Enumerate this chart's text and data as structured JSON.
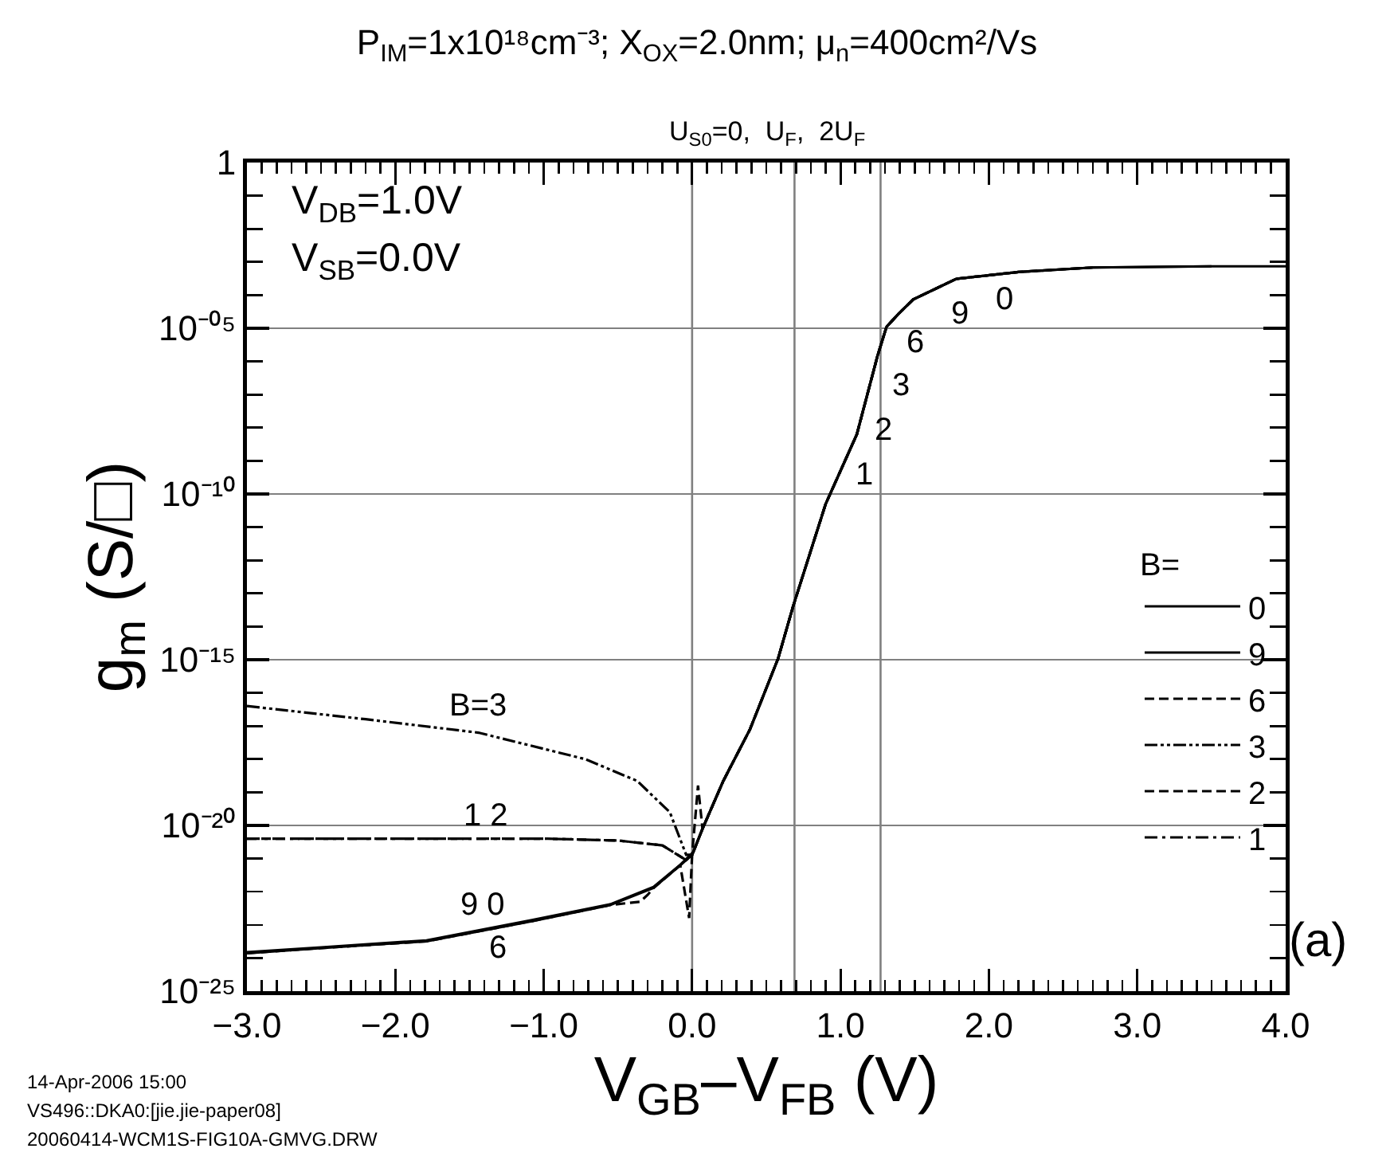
{
  "chart_data": {
    "type": "line",
    "title": "P$_{IM}$=1x10¹⁸cm⁻³; X$_{OX}$=2.0nm; μ$_{n}$=400cm²/Vs",
    "xlabel": "V$_{GB}$–V$_{FB}$ (V)",
    "ylabel": "g$_{m}$ (S/□)",
    "legend_title": "B=",
    "log": "y",
    "grid": "y",
    "legend": "right",
    "xlim": [
      -3,
      4
    ],
    "ylim": [
      1e-25,
      1
    ],
    "xticks": [
      {
        "value": -3,
        "label": "−3.0"
      },
      {
        "value": -2,
        "label": "−2.0"
      },
      {
        "value": -1,
        "label": "−1.0"
      },
      {
        "value": 0,
        "label": "0.0"
      },
      {
        "value": 1,
        "label": "1.0"
      },
      {
        "value": 2,
        "label": "2.0"
      },
      {
        "value": 3,
        "label": "3.0"
      },
      {
        "value": 4,
        "label": "4.0"
      }
    ],
    "yticks": [
      {
        "value": 1e-25,
        "label": "10⁻²⁵"
      },
      {
        "value": 1e-20,
        "label": "10⁻²⁰"
      },
      {
        "value": 1e-15,
        "label": "10⁻¹⁵"
      },
      {
        "value": 1e-10,
        "label": "10⁻¹⁰"
      },
      {
        "value": 1e-05,
        "label": "10⁻⁰⁵"
      },
      1
    ],
    "ref_lines": [
      {
        "axis": "x",
        "value": 0,
        "color": "#808080"
      },
      {
        "axis": "x",
        "value": 0.69,
        "color": "#808080"
      },
      {
        "axis": "x",
        "value": 1.27,
        "color": "#808080"
      }
    ],
    "series": [
      {
        "name": "0",
        "color": "#000000",
        "line_style": "solid",
        "x": [
          -3,
          -2.5,
          -1.79,
          -1.08,
          -0.55,
          -0.26,
          -0.08,
          0,
          0.07,
          0.21,
          0.39,
          0.58,
          0.68,
          0.9,
          1.11,
          1.25,
          1.31,
          1.39,
          1.49,
          1.78,
          2.2,
          2.7,
          3.5,
          4
        ],
        "values": [
          1.4e-24,
          2e-24,
          3.2e-24,
          1.3e-23,
          4e-23,
          1.3e-22,
          6.3e-22,
          1.3e-21,
          7.9e-21,
          2.2e-19,
          7.9e-18,
          1.1e-15,
          4e-14,
          5e-11,
          6.3e-09,
          1.5e-06,
          1.1e-05,
          2.7e-05,
          7.4e-05,
          0.00031,
          0.0005,
          0.00068,
          0.00074,
          0.00074
        ]
      },
      {
        "name": "9",
        "color": "#000000",
        "line_style": "solid",
        "x": [
          -3,
          -2.5,
          -1.79,
          -1.08,
          -0.55,
          -0.26,
          -0.08,
          0.01,
          0.07,
          0.21,
          0.39,
          0.58,
          0.68,
          0.9,
          1.11,
          1.25,
          1.31,
          1.39,
          1.49,
          1.78,
          2.2,
          2.7,
          3.5
        ],
        "values": [
          1.5e-24,
          2.1e-24,
          3.4e-24,
          1.4e-23,
          4.2e-23,
          1.4e-22,
          6.5e-22,
          1.6e-21,
          7.9e-21,
          2.2e-19,
          7.9e-18,
          1.1e-15,
          4e-14,
          5e-11,
          6.3e-09,
          1.5e-06,
          1.1e-05,
          2.7e-05,
          7.4e-05,
          0.00031,
          0.0005,
          0.00068,
          0.00074
        ]
      },
      {
        "name": "6",
        "color": "#000000",
        "line_style": "dashed",
        "x": [
          -3,
          -2.5,
          -1.79,
          -1.08,
          -0.55,
          -0.35,
          -0.3,
          -0.26,
          -0.08,
          -0.02,
          0,
          0.07,
          0.21,
          0.39,
          0.58,
          0.68,
          0.9,
          1.11,
          1.25,
          1.31,
          1.39,
          1.49,
          1.78,
          2.2,
          2.7
        ],
        "values": [
          1.4e-24,
          2e-24,
          3.2e-24,
          1.3e-23,
          4e-23,
          5e-23,
          8e-23,
          1.3e-22,
          6.3e-22,
          1.6e-23,
          1.3e-21,
          7.9e-21,
          2.2e-19,
          7.9e-18,
          1.1e-15,
          4e-14,
          5e-11,
          6.3e-09,
          1.5e-06,
          1.1e-05,
          2.7e-05,
          7.4e-05,
          0.00031,
          0.0005,
          0.00068
        ]
      },
      {
        "name": "3",
        "color": "#000000",
        "line_style": "dashdotdot",
        "x": [
          -3,
          -2.2,
          -1.44,
          -0.72,
          -0.37,
          -0.15,
          -0.04,
          0,
          0.07,
          0.21,
          0.39,
          0.58,
          0.68,
          0.9,
          1.11,
          1.25,
          1.31,
          1.39,
          1.49,
          1.78,
          2.2
        ],
        "values": [
          4e-17,
          1.6e-17,
          6.3e-18,
          1e-18,
          2.2e-19,
          2.5e-20,
          1.3e-21,
          1.3e-21,
          7.9e-21,
          2.2e-19,
          7.9e-18,
          1.1e-15,
          4e-14,
          5e-11,
          6.3e-09,
          1.5e-06,
          1.1e-05,
          2.7e-05,
          7.4e-05,
          0.00031,
          0.0005
        ]
      },
      {
        "name": "2",
        "color": "#000000",
        "line_style": "dashed",
        "x": [
          -3,
          -1,
          -0.5,
          -0.2,
          -0.04,
          0,
          0.04,
          0.07,
          0.21,
          0.39,
          0.58,
          0.68,
          0.9,
          1.11,
          1.25,
          1.31,
          1.39,
          1.49,
          1.78
        ],
        "values": [
          4e-21,
          4e-21,
          3.5e-21,
          2.5e-21,
          9e-22,
          1.3e-21,
          1.6e-19,
          7.9e-21,
          2.2e-19,
          7.9e-18,
          1.1e-15,
          4e-14,
          5e-11,
          6.3e-09,
          1.5e-06,
          1.1e-05,
          2.7e-05,
          7.4e-05,
          0.00031
        ]
      },
      {
        "name": "1",
        "color": "#000000",
        "line_style": "dashdot",
        "x": [
          -3,
          -1,
          -0.5,
          -0.2,
          -0.04,
          0,
          0.07,
          0.21,
          0.39,
          0.58,
          0.68,
          0.9,
          1.11,
          1.25,
          1.31,
          1.39,
          1.49
        ],
        "values": [
          4e-21,
          4e-21,
          3.5e-21,
          2.5e-21,
          9e-22,
          1.3e-21,
          7.9e-21,
          2.2e-19,
          7.9e-18,
          1.1e-15,
          4e-14,
          5e-11,
          6.3e-09,
          1.5e-06,
          1.1e-05,
          2.7e-05,
          7.4e-05
        ]
      }
    ],
    "annotations": [
      "V$_{DB}$=1.0V",
      "V$_{SB}$=0.0V",
      "U$_{S0}$=0,  U$_{F}$,  2U$_{F}$",
      "14-Apr-2006 15:00",
      "VS496::DKA0:[jie.jie-paper08]",
      "20060414-WCM1S-FIG10A-GMVG.DRW",
      "(a)",
      "B=3",
      "1 2",
      "9 0",
      "6",
      "1",
      "2",
      "3",
      "6",
      "9",
      "0"
    ]
  }
}
